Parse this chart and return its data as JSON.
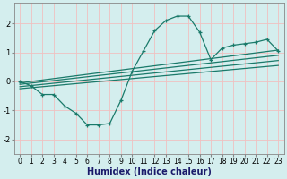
{
  "xlabel": "Humidex (Indice chaleur)",
  "bg_color": "#d4eeee",
  "grid_color": "#f0c0c0",
  "line_color": "#1a7a6a",
  "xlim": [
    -0.5,
    23.5
  ],
  "ylim": [
    -2.5,
    2.7
  ],
  "xticks": [
    0,
    1,
    2,
    3,
    4,
    5,
    6,
    7,
    8,
    9,
    10,
    11,
    12,
    13,
    14,
    15,
    16,
    17,
    18,
    19,
    20,
    21,
    22,
    23
  ],
  "yticks": [
    -2,
    -1,
    0,
    1,
    2
  ],
  "main_x": [
    0,
    1,
    2,
    3,
    4,
    5,
    6,
    7,
    8,
    9,
    10,
    11,
    12,
    13,
    14,
    15,
    16,
    17,
    18,
    19,
    20,
    21,
    22,
    23
  ],
  "main_y": [
    0.0,
    -0.15,
    -0.45,
    -0.45,
    -0.85,
    -1.1,
    -1.5,
    -1.5,
    -1.45,
    -0.65,
    0.35,
    1.05,
    1.75,
    2.1,
    2.25,
    2.25,
    1.7,
    0.75,
    1.15,
    1.25,
    1.3,
    1.35,
    1.45,
    1.05
  ],
  "linear_lines": [
    {
      "x": [
        0,
        23
      ],
      "y": [
        -0.05,
        1.08
      ]
    },
    {
      "x": [
        0,
        23
      ],
      "y": [
        -0.1,
        0.9
      ]
    },
    {
      "x": [
        0,
        23
      ],
      "y": [
        -0.18,
        0.72
      ]
    },
    {
      "x": [
        0,
        23
      ],
      "y": [
        -0.25,
        0.55
      ]
    }
  ],
  "xlabel_color": "#1a1a6a",
  "xlabel_fontsize": 7,
  "tick_fontsize": 5.5,
  "ytick_fontsize": 6
}
